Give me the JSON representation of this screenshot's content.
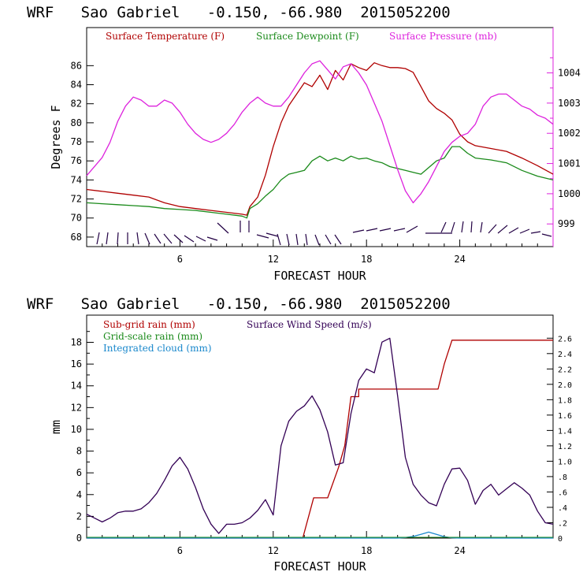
{
  "chart_data": [
    {
      "type": "line",
      "title": "WRF   Sao Gabriel   -0.150, -66.980  2015052200",
      "xlabel": "FORECAST HOUR",
      "ylabel": "Degrees F",
      "xlim": [
        0,
        30
      ],
      "ylim": [
        67,
        90
      ],
      "x_ticks": [
        6,
        12,
        18,
        24
      ],
      "y_ticks": [
        68,
        70,
        72,
        74,
        76,
        78,
        80,
        82,
        84,
        86
      ],
      "y2lim": [
        998.25,
        1005.5
      ],
      "y2_ticks": [
        999,
        1000,
        1001,
        1002,
        1003,
        1004
      ],
      "legend": [
        "Surface Temperature (F)",
        "Surface Dewpoint (F)",
        "Surface Pressure (mb)"
      ],
      "colors": {
        "temperature": "#b00000",
        "dewpoint": "#1a8a1a",
        "pressure": "#dd22dd",
        "wind": "#220044"
      },
      "series": [
        {
          "name": "Surface Temperature (F)",
          "axis": "left",
          "x": [
            0,
            1,
            2,
            3,
            4,
            5,
            6,
            7,
            8,
            9,
            10,
            10.3,
            10.5,
            11,
            11.5,
            12,
            12.5,
            13,
            13.5,
            14,
            14.5,
            15,
            15.5,
            16,
            16.5,
            17,
            17.5,
            18,
            18.5,
            19,
            19.5,
            20,
            20.5,
            21,
            21.5,
            22,
            22.5,
            23,
            23.5,
            24,
            24.5,
            25,
            26,
            27,
            28,
            29,
            30
          ],
          "y": [
            73,
            72.8,
            72.6,
            72.4,
            72.2,
            71.6,
            71.2,
            71.0,
            70.8,
            70.6,
            70.4,
            70.3,
            71.2,
            72.2,
            74.5,
            77.5,
            80.0,
            81.8,
            83.0,
            84.2,
            83.8,
            85.0,
            83.5,
            85.5,
            84.5,
            86.2,
            85.8,
            85.5,
            86.3,
            86.0,
            85.8,
            85.8,
            85.7,
            85.3,
            83.8,
            82.3,
            81.5,
            81.0,
            80.3,
            78.8,
            78.0,
            77.6,
            77.3,
            77.0,
            76.3,
            75.5,
            74.6
          ]
        },
        {
          "name": "Surface Dewpoint (F)",
          "axis": "left",
          "x": [
            0,
            1,
            2,
            3,
            4,
            5,
            6,
            7,
            8,
            9,
            10,
            10.3,
            10.5,
            11,
            11.5,
            12,
            12.5,
            13,
            13.5,
            14,
            14.5,
            15,
            15.5,
            16,
            16.5,
            17,
            17.5,
            18,
            18.5,
            19,
            19.5,
            20,
            20.5,
            21,
            21.5,
            22,
            22.5,
            23,
            23.5,
            24,
            24.5,
            25,
            26,
            27,
            28,
            29,
            30
          ],
          "y": [
            71.6,
            71.5,
            71.4,
            71.3,
            71.2,
            71.0,
            70.9,
            70.8,
            70.6,
            70.4,
            70.2,
            70.0,
            71.0,
            71.5,
            72.3,
            73.0,
            74.0,
            74.6,
            74.8,
            75.0,
            76.0,
            76.5,
            76.0,
            76.3,
            76.0,
            76.5,
            76.2,
            76.3,
            76.0,
            75.8,
            75.4,
            75.2,
            75.0,
            74.8,
            74.6,
            75.3,
            76.0,
            76.3,
            77.5,
            77.5,
            76.8,
            76.3,
            76.1,
            75.8,
            75.0,
            74.4,
            74.0
          ]
        },
        {
          "name": "Surface Pressure (mb)",
          "axis": "right",
          "x": [
            0,
            0.5,
            1,
            1.5,
            2,
            2.5,
            3,
            3.5,
            4,
            4.5,
            5,
            5.5,
            6,
            6.5,
            7,
            7.5,
            8,
            8.5,
            9,
            9.5,
            10,
            10.5,
            11,
            11.5,
            12,
            12.5,
            13,
            13.5,
            14,
            14.5,
            15,
            15.5,
            16,
            16.5,
            17,
            17.5,
            18,
            18.5,
            19,
            19.5,
            20,
            20.5,
            21,
            21.5,
            22,
            22.5,
            23,
            23.5,
            24,
            24.5,
            25,
            25.5,
            26,
            26.5,
            27,
            27.5,
            28,
            28.5,
            29,
            29.5,
            30
          ],
          "y": [
            1000.6,
            1000.9,
            1001.2,
            1001.7,
            1002.4,
            1002.9,
            1003.2,
            1003.1,
            1002.9,
            1002.9,
            1003.1,
            1003.0,
            1002.7,
            1002.3,
            1002.0,
            1001.8,
            1001.7,
            1001.8,
            1002.0,
            1002.3,
            1002.7,
            1003.0,
            1003.2,
            1003.0,
            1002.9,
            1002.9,
            1003.2,
            1003.6,
            1004.0,
            1004.3,
            1004.4,
            1004.1,
            1003.8,
            1004.2,
            1004.3,
            1004.0,
            1003.6,
            1003.0,
            1002.4,
            1001.6,
            1000.8,
            1000.1,
            999.7,
            1000.0,
            1000.4,
            1000.9,
            1001.4,
            1001.7,
            1001.9,
            1002.0,
            1002.3,
            1002.9,
            1003.2,
            1003.3,
            1003.3,
            1003.1,
            1002.9,
            1002.8,
            1002.6,
            1002.5,
            1002.3
          ]
        }
      ]
    },
    {
      "type": "line",
      "title": "WRF   Sao Gabriel   -0.150, -66.980  2015052200",
      "xlabel": "FORECAST HOUR",
      "ylabel": "mm",
      "xlim": [
        0,
        30
      ],
      "ylim": [
        0,
        20.5
      ],
      "x_ticks": [
        6,
        12,
        18,
        24
      ],
      "y_ticks": [
        0,
        2,
        4,
        6,
        8,
        10,
        12,
        14,
        16,
        18
      ],
      "y2lim": [
        0,
        2.9
      ],
      "y2_ticks": [
        0,
        0.2,
        0.4,
        0.6,
        0.8,
        1.0,
        1.2,
        1.4,
        1.6,
        1.8,
        2.0,
        2.2,
        2.4,
        2.6
      ],
      "y2_tick_labels": [
        "0",
        ".2",
        ".4",
        ".6",
        ".8",
        "1.0",
        "1.2",
        "1.4",
        "1.6",
        "1.8",
        "2.0",
        "2.2",
        "2.4",
        "2.6"
      ],
      "legend": [
        "Sub-grid rain (mm)",
        "Surface Wind Speed (m/s)",
        "Grid-scale rain (mm)",
        "Integrated cloud (mm)"
      ],
      "colors": {
        "subgrid": "#b00000",
        "wind": "#330055",
        "gridscale": "#1a8a1a",
        "cloud": "#1a88cc"
      },
      "series": [
        {
          "name": "Sub-grid rain (mm)",
          "axis": "left",
          "x": [
            0,
            13.9,
            14.6,
            15.5,
            15.5,
            16.2,
            16.2,
            16.6,
            16.6,
            17.0,
            17.0,
            17.5,
            17.5,
            18.0,
            18.0,
            20,
            22,
            22.6,
            23.0,
            23.5,
            24,
            26,
            28,
            30
          ],
          "y": [
            0,
            0,
            3.7,
            3.7,
            3.7,
            6.5,
            6.5,
            8.5,
            8.5,
            13.0,
            13.0,
            13.0,
            13.7,
            13.7,
            13.7,
            13.7,
            13.7,
            13.7,
            16.0,
            18.2,
            18.2,
            18.2,
            18.2,
            18.2
          ]
        },
        {
          "name": "Surface Wind Speed (m/s)",
          "axis": "right",
          "x": [
            0,
            0.5,
            1,
            1.5,
            2,
            2.5,
            3,
            3.5,
            4,
            4.5,
            5,
            5.5,
            6,
            6.5,
            7,
            7.5,
            8,
            8.5,
            9,
            9.5,
            10,
            10.5,
            11,
            11.5,
            12,
            12.5,
            13,
            13.5,
            14,
            14.5,
            15,
            15.5,
            16,
            16.5,
            17,
            17.5,
            18,
            18.5,
            19,
            19.5,
            20,
            20.5,
            21,
            21.5,
            22,
            22.5,
            23,
            23.5,
            24,
            24.5,
            25,
            25.5,
            26,
            26.5,
            27,
            27.5,
            28,
            28.5,
            29,
            29.5,
            30
          ],
          "y": [
            0.31,
            0.26,
            0.21,
            0.26,
            0.33,
            0.35,
            0.35,
            0.38,
            0.46,
            0.58,
            0.75,
            0.94,
            1.05,
            0.9,
            0.66,
            0.38,
            0.18,
            0.06,
            0.18,
            0.18,
            0.2,
            0.26,
            0.36,
            0.5,
            0.3,
            1.2,
            1.52,
            1.65,
            1.72,
            1.85,
            1.67,
            1.38,
            0.95,
            0.98,
            1.62,
            2.05,
            2.2,
            2.15,
            2.55,
            2.6,
            1.85,
            1.05,
            0.7,
            0.56,
            0.46,
            0.42,
            0.7,
            0.9,
            0.91,
            0.75,
            0.44,
            0.62,
            0.7,
            0.56,
            0.64,
            0.72,
            0.65,
            0.56,
            0.35,
            0.2,
            0.18
          ]
        },
        {
          "name": "Integrated cloud (mm)",
          "axis": "left",
          "x": [
            0,
            10,
            20,
            20.5,
            21,
            21.5,
            22,
            22.5,
            23,
            23.5,
            24,
            26,
            30
          ],
          "y": [
            0,
            0,
            0,
            0.05,
            0.15,
            0.35,
            0.55,
            0.35,
            0.12,
            0.03,
            0,
            0,
            0
          ]
        }
      ]
    }
  ]
}
